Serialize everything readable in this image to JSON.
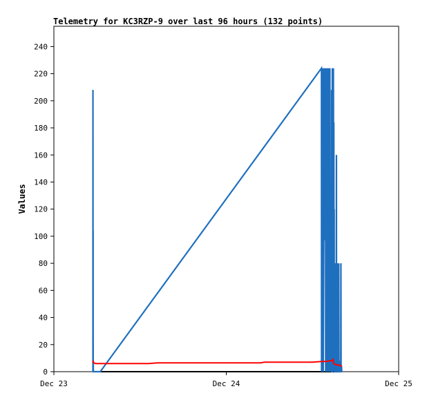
{
  "chart_data": {
    "type": "line",
    "title": "Telemetry for KC3RZP-9 over last 96 hours (132 points)",
    "xlabel": "",
    "ylabel": "Values",
    "ylim": [
      0,
      255
    ],
    "yticks": [
      0,
      20,
      40,
      60,
      80,
      100,
      120,
      140,
      160,
      180,
      200,
      220,
      240
    ],
    "xlim": [
      "Dec 23",
      "Dec 25"
    ],
    "xtick_labels": [
      "Dec 23",
      "Dec 24",
      "Dec 25"
    ],
    "x_unit": "days since Dec 23 00:00",
    "grid": false,
    "legend": "none",
    "colors": {
      "blue": "#1f6fbf",
      "red": "#ff0000",
      "black": "#000000"
    },
    "series": [
      {
        "color": "#1f6fbf",
        "x": [
          0.2265,
          0.2266,
          0.2274,
          0.2276,
          0.2278,
          0.228,
          0.229,
          0.2305,
          0.231,
          0.2315,
          0.232,
          0.233,
          0.269,
          1.552,
          1.5525,
          1.553,
          1.554,
          1.5565,
          1.557,
          1.5575,
          1.56,
          1.561,
          1.5612,
          1.5614,
          1.5616,
          1.5618,
          1.562,
          1.5622,
          1.5625,
          1.57,
          1.5705,
          1.572,
          1.5725,
          1.576,
          1.5765,
          1.577,
          1.579,
          1.5795,
          1.58,
          1.582,
          1.585,
          1.5855,
          1.586,
          1.5865,
          1.587,
          1.589,
          1.592,
          1.593,
          1.594,
          1.5945,
          1.595,
          1.597,
          1.599,
          1.6,
          1.601,
          1.602,
          1.603,
          1.6045,
          1.606,
          1.6075,
          1.608,
          1.6095,
          1.611,
          1.613,
          1.6145,
          1.615,
          1.616,
          1.617,
          1.6175,
          1.619,
          1.621,
          1.6212,
          1.6214,
          1.6216,
          1.6218,
          1.623,
          1.624,
          1.625,
          1.6255,
          1.626,
          1.6265,
          1.627,
          1.628,
          1.6285,
          1.629,
          1.6295,
          1.6305,
          1.632,
          1.633,
          1.6335,
          1.6345,
          1.635,
          1.6355,
          1.637,
          1.638,
          1.639,
          1.6395,
          1.64,
          1.6405,
          1.642,
          1.6425,
          1.643,
          1.6445,
          1.645,
          1.6455,
          1.647,
          1.6475,
          1.648,
          1.649,
          1.65,
          1.651,
          1.6515,
          1.652,
          1.6525,
          1.654,
          1.6545,
          1.655,
          1.6555,
          1.656,
          1.657,
          1.6575,
          1.66,
          1.6605,
          1.661,
          1.6615,
          1.664,
          1.665,
          1.666,
          1.6665,
          1.6685,
          1.67,
          1.671
        ],
        "y": [
          0,
          208,
          0,
          104,
          0,
          8,
          0,
          0,
          0,
          0,
          0,
          0,
          0,
          224,
          0,
          112,
          0,
          224,
          0,
          97,
          0,
          224,
          130,
          224,
          100,
          224,
          210,
          224,
          0,
          224,
          97,
          224,
          128,
          224,
          0,
          224,
          196,
          0,
          224,
          0,
          96,
          0,
          224,
          120,
          0,
          96,
          0,
          224,
          32,
          200,
          0,
          64,
          160,
          0,
          224,
          80,
          100,
          0,
          56,
          0,
          16,
          0,
          208,
          0,
          0,
          224,
          0,
          160,
          0,
          64,
          224,
          208,
          224,
          120,
          208,
          0,
          184,
          0,
          48,
          120,
          16,
          80,
          0,
          32,
          0,
          64,
          0,
          0,
          32,
          0,
          64,
          80,
          0,
          16,
          0,
          160,
          0,
          80,
          24,
          0,
          40,
          0,
          0,
          16,
          0,
          80,
          16,
          0,
          32,
          64,
          0,
          16,
          0,
          80,
          0,
          8,
          0,
          0,
          0,
          0,
          8,
          0,
          4,
          0,
          0,
          0,
          80,
          0,
          0,
          4,
          0,
          0
        ]
      },
      {
        "color": "#ff0000",
        "x": [
          0.2265,
          0.228,
          0.23,
          0.233,
          0.24,
          0.26,
          0.3,
          0.4,
          0.5,
          0.55,
          0.6,
          0.8,
          1.0,
          1.2,
          1.22,
          1.3,
          1.4,
          1.5,
          1.552,
          1.56,
          1.58,
          1.6,
          1.61,
          1.616,
          1.62,
          1.623,
          1.63,
          1.64,
          1.65,
          1.66,
          1.671
        ],
        "y": [
          6.5,
          7.5,
          7.0,
          6.5,
          6.0,
          6.0,
          6.0,
          6.0,
          6.0,
          6.0,
          6.5,
          6.5,
          6.5,
          6.5,
          7.0,
          7.0,
          7.0,
          7.0,
          7.5,
          7.5,
          7.5,
          8.0,
          8.0,
          8.5,
          9.0,
          6.0,
          5.5,
          5.0,
          5.0,
          4.5,
          4.0
        ]
      },
      {
        "color": "#000000",
        "x": [
          0.2265,
          1.671
        ],
        "y": [
          0,
          0
        ]
      }
    ]
  }
}
